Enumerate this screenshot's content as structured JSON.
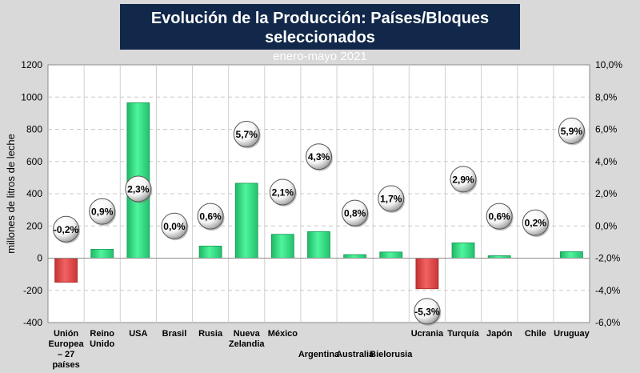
{
  "header": {
    "title": "Evolución de la Producción: Países/Bloques seleccionados",
    "subtitle": "enero-mayo 2021"
  },
  "chart_data": {
    "type": "bar",
    "title": "Evolución de la Producción: Países/Bloques seleccionados",
    "subtitle": "enero-mayo 2021",
    "ylabel": "millones de litros de leche",
    "ylim": [
      -400,
      1200
    ],
    "yticks": [
      "-400",
      "-200",
      "0",
      "200",
      "400",
      "600",
      "800",
      "1000",
      "1200"
    ],
    "y2lim": [
      -6,
      10
    ],
    "y2ticks": [
      "-6,0%",
      "-4,0%",
      "-2,0%",
      "0,0%",
      "2,0%",
      "4,0%",
      "6,0%",
      "8,0%",
      "10,0%"
    ],
    "grid": true,
    "categories": [
      [
        "Unión",
        "Europea",
        "– 27",
        "países"
      ],
      [
        "Reino",
        "Unido"
      ],
      [
        "USA"
      ],
      [
        "Brasil"
      ],
      [
        "Rusia"
      ],
      [
        "Nueva",
        "Zelandia"
      ],
      [
        "México"
      ],
      [
        "",
        "",
        "Argentina"
      ],
      [
        "",
        "",
        "Australia"
      ],
      [
        "",
        "",
        "Bielorusia"
      ],
      [
        "Ucrania"
      ],
      [
        "Turquía"
      ],
      [
        "Japón"
      ],
      [
        "Chile"
      ],
      [
        "Uruguay"
      ]
    ],
    "series": [
      {
        "values": [
          -150,
          55,
          965,
          0,
          75,
          465,
          148,
          165,
          22,
          38,
          -190,
          95,
          15,
          0,
          40
        ]
      },
      {
        "values": [
          -0.2,
          0.9,
          2.3,
          0.0,
          0.6,
          5.7,
          2.1,
          4.3,
          0.8,
          1.7,
          -5.3,
          2.9,
          0.6,
          0.2,
          5.9
        ],
        "labels": [
          "-0,2%",
          "0,9%",
          "2,3%",
          "0,0%",
          "0,6%",
          "5,7%",
          "2,1%",
          "4,3%",
          "0,8%",
          "1,7%",
          "-5,3%",
          "2,9%",
          "0,6%",
          "0,2%",
          "5,9%"
        ]
      }
    ],
    "colors": {
      "positive": "#3ee88e",
      "negative": "#e84c4c",
      "background": "#ffffff"
    }
  }
}
